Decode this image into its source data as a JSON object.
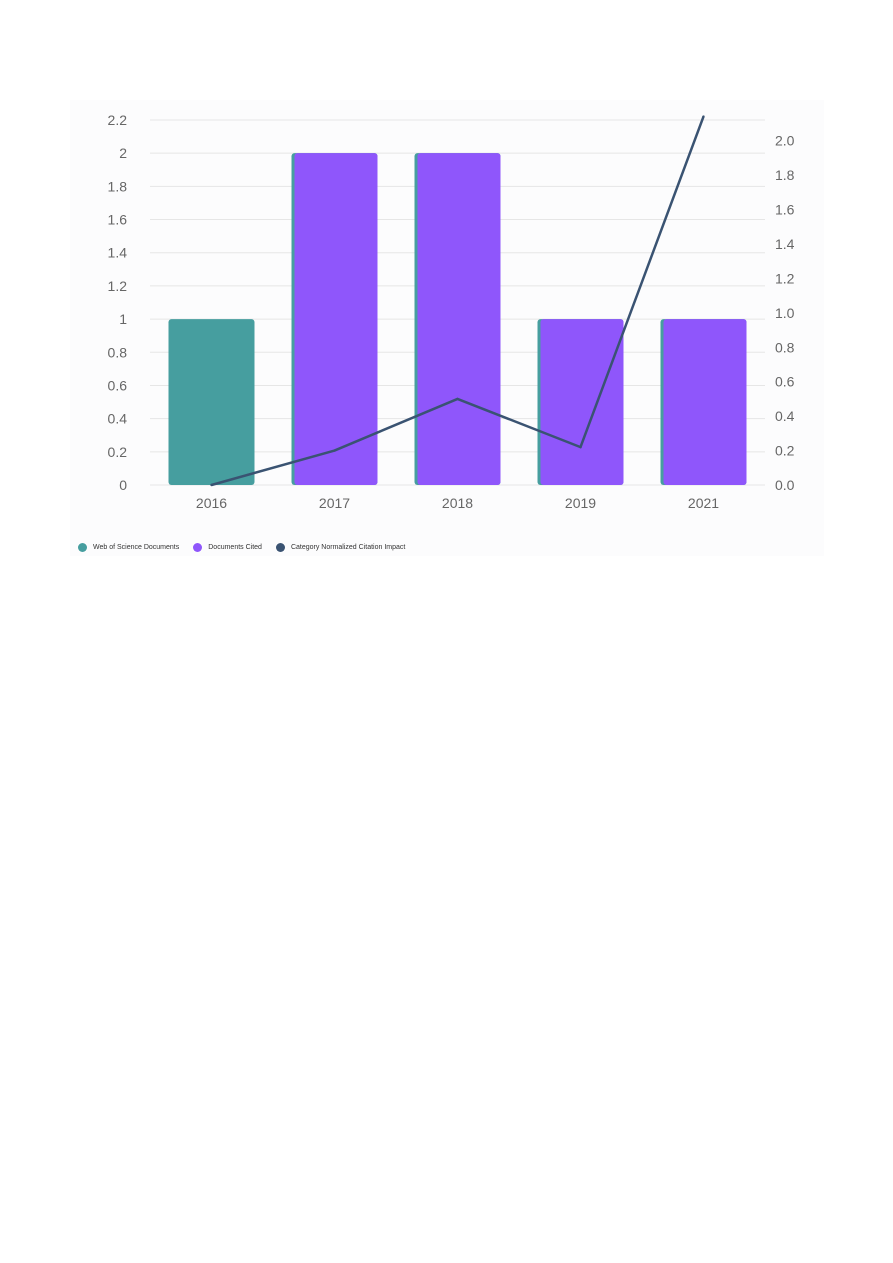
{
  "chart_data": {
    "type": "bar",
    "categories": [
      "2016",
      "2017",
      "2018",
      "2019",
      "2021"
    ],
    "series": [
      {
        "name": "Web of Science Documents",
        "kind": "bar",
        "axis": "left",
        "color": "#469e9f",
        "values": [
          1,
          2,
          2,
          1,
          1
        ]
      },
      {
        "name": "Documents Cited",
        "kind": "bar",
        "axis": "left",
        "color": "#8f56fb",
        "values": [
          0,
          2,
          2,
          1,
          1
        ]
      },
      {
        "name": "Category Normalized Citation Impact",
        "kind": "line",
        "axis": "right",
        "color": "#3a5372",
        "values": [
          0.0,
          0.2,
          0.5,
          0.22,
          2.14
        ]
      }
    ],
    "y_left": {
      "ylim": [
        0,
        2.2
      ],
      "ticks": [
        "0",
        "0.2",
        "0.4",
        "0.6",
        "0.8",
        "1",
        "1.2",
        "1.4",
        "1.6",
        "1.8",
        "2",
        "2.2"
      ]
    },
    "y_right": {
      "ylim": [
        0,
        2.12
      ],
      "ticks": [
        "0.0",
        "0.2",
        "0.4",
        "0.6",
        "0.8",
        "1.0",
        "1.2",
        "1.4",
        "1.6",
        "1.8",
        "2.0"
      ]
    },
    "grid": true,
    "legend_position": "bottom-left",
    "title": "",
    "xlabel": "",
    "ylabel": ""
  }
}
